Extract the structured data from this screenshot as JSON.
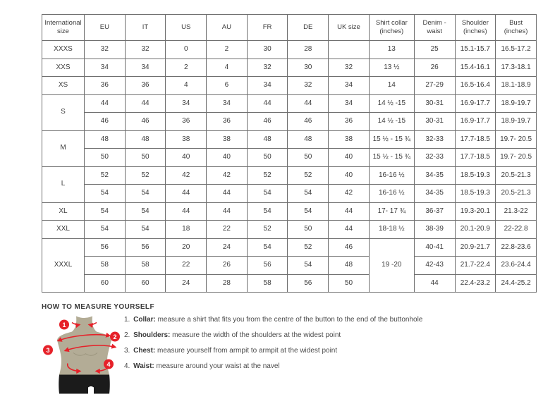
{
  "table": {
    "headers": [
      "International size",
      "EU",
      "IT",
      "US",
      "AU",
      "FR",
      "DE",
      "UK size",
      "Shirt collar (inches)",
      "Denim - waist",
      "Shoulder (inches)",
      "Bust (inches)"
    ],
    "rows": [
      [
        "XXXS",
        "32",
        "32",
        "0",
        "2",
        "30",
        "28",
        "",
        "13",
        "25",
        "15.1-15.7",
        "16.5-17.2"
      ],
      [
        "XXS",
        "34",
        "34",
        "2",
        "4",
        "32",
        "30",
        "32",
        "13 ½",
        "26",
        "15.4-16.1",
        "17.3-18.1"
      ],
      [
        "XS",
        "36",
        "36",
        "4",
        "6",
        "34",
        "32",
        "34",
        "14",
        "27-29",
        "16.5-16.4",
        "18.1-18.9"
      ],
      [
        {
          "t": "S",
          "rs": 2
        },
        "44",
        "44",
        "34",
        "34",
        "44",
        "44",
        "34",
        "14 ½ -15",
        "30-31",
        "16.9-17.7",
        "18.9-19.7"
      ],
      [
        "46",
        "46",
        "36",
        "36",
        "46",
        "46",
        "36",
        "14 ½ -15",
        "30-31",
        "16.9-17.7",
        "18.9-19.7"
      ],
      [
        {
          "t": "M",
          "rs": 2
        },
        "48",
        "48",
        "38",
        "38",
        "48",
        "48",
        "38",
        "15 ½ - 15 ¾",
        "32-33",
        "17.7-18.5",
        "19.7- 20.5"
      ],
      [
        "50",
        "50",
        "40",
        "40",
        "50",
        "50",
        "40",
        "15 ½ - 15 ¾",
        "32-33",
        "17.7-18.5",
        "19.7- 20.5"
      ],
      [
        {
          "t": "L",
          "rs": 2
        },
        "52",
        "52",
        "42",
        "42",
        "52",
        "52",
        "40",
        "16-16 ½",
        "34-35",
        "18.5-19.3",
        "20.5-21.3"
      ],
      [
        "54",
        "54",
        "44",
        "44",
        "54",
        "54",
        "42",
        "16-16 ½",
        "34-35",
        "18.5-19.3",
        "20.5-21.3"
      ],
      [
        "XL",
        "54",
        "54",
        "44",
        "44",
        "54",
        "54",
        "44",
        "17- 17 ¾",
        "36-37",
        "19.3-20.1",
        "21.3-22"
      ],
      [
        "XXL",
        "54",
        "54",
        "18",
        "22",
        "52",
        "50",
        "44",
        "18-18 ½",
        "38-39",
        "20.1-20.9",
        "22-22.8"
      ],
      [
        {
          "t": "XXXL",
          "rs": 3
        },
        "56",
        "56",
        "20",
        "24",
        "54",
        "52",
        "46",
        {
          "t": "19 -20",
          "rs": 3
        },
        "40-41",
        "20.9-21.7",
        "22.8-23.6"
      ],
      [
        "58",
        "58",
        "22",
        "26",
        "56",
        "54",
        "48",
        "42-43",
        "21.7-22.4",
        "23.6-24.4"
      ],
      [
        "60",
        "60",
        "24",
        "28",
        "58",
        "56",
        "50",
        "44",
        "22.4-23.2",
        "24.4-25.2"
      ]
    ]
  },
  "measure_guide": {
    "title": "HOW TO MEASURE YOURSELF",
    "steps": [
      {
        "num": "1.",
        "label": "Collar:",
        "text": "measure a shirt that fits you from the centre of the button to the end of the buttonhole"
      },
      {
        "num": "2.",
        "label": "Shoulders:",
        "text": "measure the width of the shoulders at the widest point"
      },
      {
        "num": "3.",
        "label": "Chest:",
        "text": "measure yourself from armpit to armpit at the widest point"
      },
      {
        "num": "4.",
        "label": "Waist:",
        "text": "measure around your waist at the navel"
      }
    ],
    "diagram_markers": [
      "1",
      "2",
      "3",
      "4"
    ]
  },
  "colors": {
    "accent_red": "#e62129",
    "mannequin_tan": "#b3ac96",
    "shorts_black": "#1b1b1b",
    "border_gray": "#6f6f6f",
    "text_dark": "#3d3d3d"
  }
}
